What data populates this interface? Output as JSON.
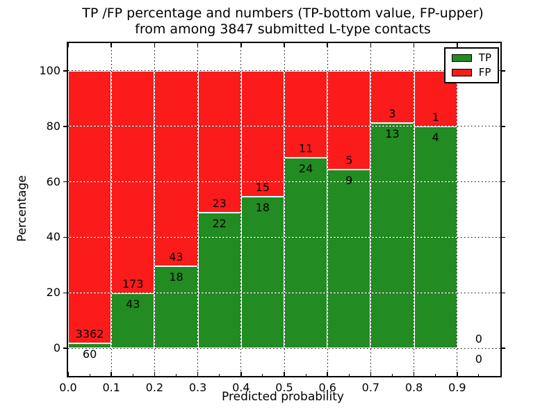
{
  "chart_data": {
    "type": "bar",
    "stacked": true,
    "title_line1": "TP /FP percentage and numbers (TP-bottom value, FP-upper)",
    "title_line2": "from among 3847 submitted L-type contacts",
    "xlabel": "Predicted probability",
    "ylabel": "Percentage",
    "xlim": [
      0.0,
      1.0
    ],
    "ylim": [
      -10,
      110
    ],
    "grid": true,
    "legend_position": "upper right",
    "series": [
      {
        "name": "TP",
        "color": "#228B22"
      },
      {
        "name": "FP",
        "color": "#FB1B1B"
      }
    ],
    "x_ticks": [
      {
        "value": 0.0,
        "label": "0.0"
      },
      {
        "value": 0.1,
        "label": "0.1"
      },
      {
        "value": 0.2,
        "label": "0.2"
      },
      {
        "value": 0.3,
        "label": "0.3"
      },
      {
        "value": 0.4,
        "label": "0.4"
      },
      {
        "value": 0.5,
        "label": "0.5"
      },
      {
        "value": 0.6,
        "label": "0.6"
      },
      {
        "value": 0.7,
        "label": "0.7"
      },
      {
        "value": 0.8,
        "label": "0.8"
      },
      {
        "value": 0.9,
        "label": "0.9"
      }
    ],
    "x_minor_ticks": [
      0.05,
      0.15,
      0.25,
      0.35,
      0.45,
      0.55,
      0.65,
      0.75,
      0.85,
      0.95
    ],
    "y_ticks": [
      {
        "value": 0,
        "label": "0"
      },
      {
        "value": 20,
        "label": "20"
      },
      {
        "value": 40,
        "label": "40"
      },
      {
        "value": 60,
        "label": "60"
      },
      {
        "value": 80,
        "label": "80"
      },
      {
        "value": 100,
        "label": "100"
      }
    ],
    "bins": [
      {
        "x0": 0.0,
        "x1": 0.1,
        "tp": 60,
        "fp": 3362,
        "tp_pct": 1.75,
        "fp_pct": 98.25,
        "has_bar": true
      },
      {
        "x0": 0.1,
        "x1": 0.2,
        "tp": 43,
        "fp": 173,
        "tp_pct": 19.91,
        "fp_pct": 80.09,
        "has_bar": true
      },
      {
        "x0": 0.2,
        "x1": 0.3,
        "tp": 18,
        "fp": 43,
        "tp_pct": 29.51,
        "fp_pct": 70.49,
        "has_bar": true
      },
      {
        "x0": 0.3,
        "x1": 0.4,
        "tp": 22,
        "fp": 23,
        "tp_pct": 48.89,
        "fp_pct": 51.11,
        "has_bar": true
      },
      {
        "x0": 0.4,
        "x1": 0.5,
        "tp": 18,
        "fp": 15,
        "tp_pct": 54.55,
        "fp_pct": 45.45,
        "has_bar": true
      },
      {
        "x0": 0.5,
        "x1": 0.6,
        "tp": 24,
        "fp": 11,
        "tp_pct": 68.57,
        "fp_pct": 31.43,
        "has_bar": true
      },
      {
        "x0": 0.6,
        "x1": 0.7,
        "tp": 9,
        "fp": 5,
        "tp_pct": 64.29,
        "fp_pct": 35.71,
        "has_bar": true
      },
      {
        "x0": 0.7,
        "x1": 0.8,
        "tp": 13,
        "fp": 3,
        "tp_pct": 81.25,
        "fp_pct": 18.75,
        "has_bar": true
      },
      {
        "x0": 0.8,
        "x1": 0.9,
        "tp": 4,
        "fp": 1,
        "tp_pct": 80.0,
        "fp_pct": 20.0,
        "has_bar": true
      },
      {
        "x0": 0.9,
        "x1": 1.0,
        "tp": 0,
        "fp": 0,
        "tp_pct": 0.0,
        "fp_pct": 0.0,
        "has_bar": false
      }
    ]
  }
}
